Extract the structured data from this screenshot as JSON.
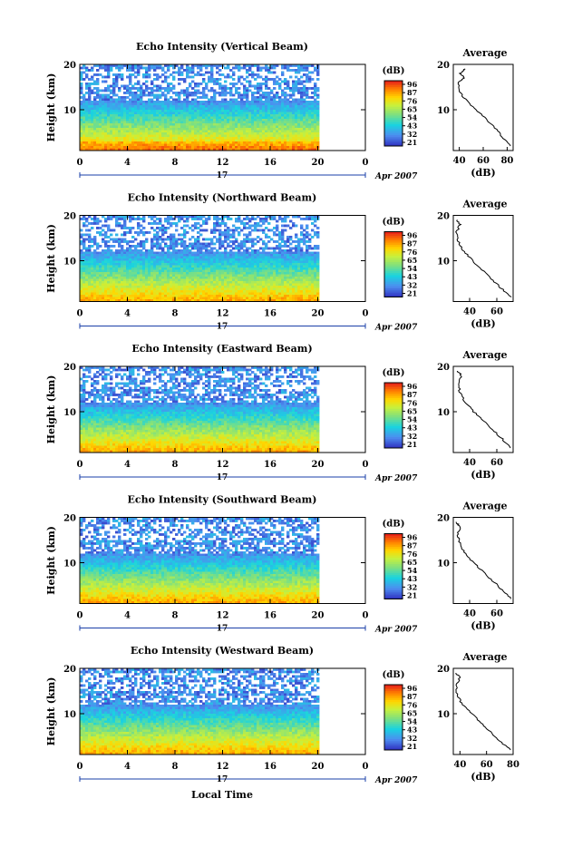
{
  "page": {
    "xlabel": "Local Time",
    "date_label": "Apr 2007",
    "day_label": "17",
    "colorbar_unit": "(dB)",
    "colorbar_ticks": [
      "96",
      "87",
      "76",
      "65",
      "54",
      "43",
      "32",
      "21"
    ],
    "colorbar_colors": [
      "#e41a1c",
      "#ff7f00",
      "#ffd700",
      "#f0f020",
      "#7fe07f",
      "#19d3e0",
      "#4d8ef0",
      "#3030c0"
    ],
    "average_title": "Average",
    "average_xlabel": "(dB)",
    "ylabel": "Height (km)"
  },
  "chart_data": [
    {
      "type": "heatmap",
      "title": "Echo Intensity (Vertical Beam)",
      "ylabel": "Height (km)",
      "xlim": [
        0,
        24
      ],
      "ylim": [
        1,
        20
      ],
      "xticks": [
        "0",
        "4",
        "8",
        "12",
        "16",
        "20",
        "0"
      ],
      "yticks": [
        "20",
        "10"
      ],
      "avg_title": "Average",
      "avg_xlabel": "(dB)",
      "avg_xticks": [
        "40",
        "60",
        "80"
      ],
      "avg_xlim": [
        35,
        85
      ],
      "avg_profile": {
        "height": [
          2,
          4,
          6,
          8,
          10,
          12,
          14,
          16,
          17,
          18,
          19
        ],
        "db": [
          83,
          76,
          70,
          62,
          54,
          46,
          40,
          39,
          44,
          41,
          45
        ]
      }
    },
    {
      "type": "heatmap",
      "title": "Echo Intensity (Northward Beam)",
      "ylabel": "Height (km)",
      "xlim": [
        0,
        24
      ],
      "ylim": [
        1,
        20
      ],
      "xticks": [
        "0",
        "4",
        "8",
        "12",
        "16",
        "20",
        "0"
      ],
      "yticks": [
        "20",
        "10"
      ],
      "avg_title": "Average",
      "avg_xlabel": "(dB)",
      "avg_xticks": [
        "40",
        "60"
      ],
      "avg_xlim": [
        28,
        72
      ],
      "avg_profile": {
        "height": [
          2,
          4,
          6,
          8,
          10,
          12,
          14,
          16,
          18,
          19
        ],
        "db": [
          70,
          63,
          56,
          49,
          42,
          36,
          32,
          30,
          33,
          31
        ]
      }
    },
    {
      "type": "heatmap",
      "title": "Echo Intensity (Eastward Beam)",
      "ylabel": "Height (km)",
      "xlim": [
        0,
        24
      ],
      "ylim": [
        1,
        20
      ],
      "xticks": [
        "0",
        "4",
        "8",
        "12",
        "16",
        "20",
        "0"
      ],
      "yticks": [
        "20",
        "10"
      ],
      "avg_title": "Average",
      "avg_xlabel": "(dB)",
      "avg_xticks": [
        "40",
        "60"
      ],
      "avg_xlim": [
        28,
        72
      ],
      "avg_profile": {
        "height": [
          2,
          4,
          6,
          8,
          10,
          12,
          14,
          16,
          18,
          19
        ],
        "db": [
          70,
          64,
          57,
          50,
          43,
          37,
          33,
          32,
          34,
          31
        ]
      }
    },
    {
      "type": "heatmap",
      "title": "Echo Intensity (Southward Beam)",
      "ylabel": "Height (km)",
      "xlim": [
        0,
        24
      ],
      "ylim": [
        1,
        20
      ],
      "xticks": [
        "0",
        "4",
        "8",
        "12",
        "16",
        "20",
        "0"
      ],
      "yticks": [
        "20",
        "10"
      ],
      "avg_title": "Average",
      "avg_xlabel": "(dB)",
      "avg_xticks": [
        "40",
        "60"
      ],
      "avg_xlim": [
        28,
        72
      ],
      "avg_profile": {
        "height": [
          2,
          4,
          6,
          8,
          10,
          12,
          14,
          16,
          18,
          19
        ],
        "db": [
          71,
          64,
          57,
          50,
          43,
          37,
          33,
          31,
          33,
          30
        ]
      }
    },
    {
      "type": "heatmap",
      "title": "Echo Intensity (Westward Beam)",
      "ylabel": "Height (km)",
      "xlim": [
        0,
        24
      ],
      "ylim": [
        1,
        20
      ],
      "xticks": [
        "0",
        "4",
        "8",
        "12",
        "16",
        "20",
        "0"
      ],
      "yticks": [
        "20",
        "10"
      ],
      "avg_title": "Average",
      "avg_xlabel": "(dB)",
      "avg_xticks": [
        "40",
        "60",
        "80"
      ],
      "avg_xlim": [
        35,
        80
      ],
      "avg_profile": {
        "height": [
          2,
          4,
          6,
          8,
          10,
          12,
          14,
          16,
          18,
          19
        ],
        "db": [
          78,
          70,
          63,
          56,
          49,
          42,
          38,
          37,
          40,
          37
        ]
      }
    }
  ]
}
